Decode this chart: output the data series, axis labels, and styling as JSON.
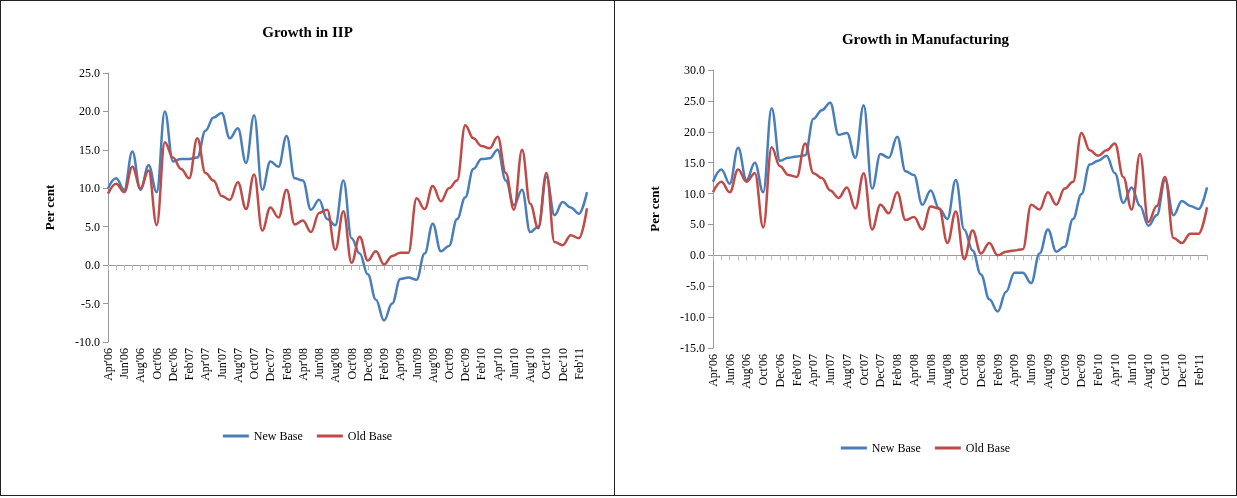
{
  "chart_data": [
    {
      "type": "line",
      "title": "Growth in IIP",
      "ylabel": "Per cent",
      "legend": "bottom",
      "categories": [
        "Apr'06",
        null,
        "Jun'06",
        null,
        "Aug'06",
        null,
        "Oct'06",
        null,
        "Dec'06",
        null,
        "Feb'07",
        null,
        "Apr'07",
        null,
        "Jun'07",
        null,
        "Aug'07",
        null,
        "Oct'07",
        null,
        "Dec'07",
        null,
        "Feb'08",
        null,
        "Apr'08",
        null,
        "Jun'08",
        null,
        "Aug'08",
        null,
        "Oct'08",
        null,
        "Dec'08",
        null,
        "Feb'09",
        null,
        "Apr'09",
        null,
        "Jun'09",
        null,
        "Aug'09",
        null,
        "Oct'09",
        null,
        "Dec'09",
        null,
        "Feb'10",
        null,
        "Apr'10",
        null,
        "Jun'10",
        null,
        "Aug'10",
        null,
        "Oct'10",
        null,
        "Dec'10",
        null,
        "Feb'11",
        null
      ],
      "ylim": [
        -10,
        25
      ],
      "yticks": [
        {
          "value": -10,
          "label": "-10.0"
        },
        {
          "value": -5,
          "label": "-5.0"
        },
        {
          "value": 0,
          "label": "0.0"
        },
        {
          "value": 5,
          "label": "5.0"
        },
        {
          "value": 10,
          "label": "10.0"
        },
        {
          "value": 15,
          "label": "15.0"
        },
        {
          "value": 20,
          "label": "20.0"
        },
        {
          "value": 25,
          "label": "25.0"
        }
      ],
      "series": [
        {
          "name": "New Base",
          "color": "#4a7ebb",
          "values": [
            10.0,
            11.3,
            9.8,
            14.8,
            9.8,
            13.0,
            9.5,
            20.0,
            13.5,
            13.8,
            13.8,
            14.0,
            17.5,
            19.2,
            19.8,
            16.5,
            17.8,
            13.3,
            19.5,
            9.8,
            13.5,
            12.8,
            16.8,
            11.3,
            11.0,
            7.2,
            8.5,
            6.0,
            5.2,
            11.0,
            3.5,
            1.5,
            -1.2,
            -4.5,
            -7.2,
            -5.0,
            -1.8,
            -1.6,
            -1.9,
            1.5,
            5.4,
            1.8,
            2.5,
            6.0,
            8.8,
            12.5,
            13.8,
            13.9,
            15.0,
            11.0,
            7.8,
            9.8,
            4.3,
            5.0,
            11.5,
            6.5,
            8.2,
            7.5,
            6.7,
            9.5
          ]
        },
        {
          "name": "Old Base",
          "color": "#be4b48",
          "values": [
            9.3,
            10.6,
            9.5,
            12.8,
            10.0,
            12.3,
            5.2,
            16.0,
            14.0,
            12.5,
            11.3,
            16.5,
            12.0,
            11.0,
            9.0,
            8.5,
            10.8,
            7.3,
            11.8,
            4.5,
            7.5,
            6.2,
            9.8,
            5.3,
            5.8,
            4.3,
            6.8,
            7.2,
            2.0,
            7.0,
            0.3,
            3.7,
            0.6,
            1.8,
            0.1,
            1.2,
            1.6,
            1.6,
            8.7,
            7.3,
            10.3,
            8.3,
            10.0,
            11.0,
            18.2,
            16.5,
            15.5,
            15.2,
            16.7,
            12.0,
            7.2,
            15.0,
            8.0,
            4.8,
            12.0,
            3.0,
            2.6,
            3.9,
            3.5,
            7.4
          ]
        }
      ]
    },
    {
      "type": "line",
      "title": "Growth in Manufacturing",
      "ylabel": "Per cent",
      "legend": "bottom",
      "categories": [
        "Apr'06",
        null,
        "Jun'06",
        null,
        "Aug'06",
        null,
        "Oct'06",
        null,
        "Dec'06",
        null,
        "Feb'07",
        null,
        "Apr'07",
        null,
        "Jun'07",
        null,
        "Aug'07",
        null,
        "Oct'07",
        null,
        "Dec'07",
        null,
        "Feb'08",
        null,
        "Apr'08",
        null,
        "Jun'08",
        null,
        "Aug'08",
        null,
        "Oct'08",
        null,
        "Dec'08",
        null,
        "Feb'09",
        null,
        "Apr'09",
        null,
        "Jun'09",
        null,
        "Aug'09",
        null,
        "Oct'09",
        null,
        "Dec'09",
        null,
        "Feb'10",
        null,
        "Apr'10",
        null,
        "Jun'10",
        null,
        "Aug'10",
        null,
        "Oct'10",
        null,
        "Dec'10",
        null,
        "Feb'11",
        null
      ],
      "ylim": [
        -15,
        30
      ],
      "yticks": [
        {
          "value": -15,
          "label": "-15.0"
        },
        {
          "value": -10,
          "label": "-10.0"
        },
        {
          "value": -5,
          "label": "-5.0"
        },
        {
          "value": 0,
          "label": "0.0"
        },
        {
          "value": 5,
          "label": "5.0"
        },
        {
          "value": 10,
          "label": "10.0"
        },
        {
          "value": 15,
          "label": "15.0"
        },
        {
          "value": 20,
          "label": "20.0"
        },
        {
          "value": 25,
          "label": "25.0"
        },
        {
          "value": 30,
          "label": "30.0"
        }
      ],
      "series": [
        {
          "name": "New Base",
          "color": "#4a7ebb",
          "values": [
            11.9,
            13.9,
            11.6,
            17.4,
            12.2,
            15.0,
            10.2,
            23.8,
            15.3,
            15.8,
            16.0,
            16.2,
            22.1,
            23.5,
            24.7,
            19.5,
            19.8,
            15.8,
            24.3,
            10.8,
            16.4,
            15.8,
            19.2,
            13.6,
            13.0,
            8.2,
            10.5,
            7.6,
            5.9,
            12.2,
            4.2,
            0.8,
            -3.1,
            -7.1,
            -9.1,
            -5.9,
            -2.8,
            -2.8,
            -4.5,
            0.3,
            4.2,
            0.6,
            1.4,
            5.9,
            9.9,
            14.7,
            15.3,
            16.1,
            13.3,
            8.5,
            11.0,
            8.0,
            4.8,
            6.5,
            12.2,
            6.5,
            8.8,
            8.0,
            7.5,
            11.0
          ]
        },
        {
          "name": "Old Base",
          "color": "#be4b48",
          "values": [
            10.2,
            11.9,
            10.2,
            13.9,
            11.9,
            13.3,
            4.5,
            17.5,
            14.4,
            13.0,
            12.7,
            18.1,
            13.3,
            12.5,
            10.5,
            9.3,
            11.0,
            7.6,
            13.3,
            4.2,
            8.2,
            6.8,
            10.2,
            5.7,
            6.2,
            4.2,
            7.9,
            7.6,
            2.0,
            7.1,
            -0.6,
            4.0,
            0.3,
            2.0,
            0.0,
            0.6,
            0.8,
            1.0,
            8.2,
            7.4,
            10.2,
            8.2,
            10.8,
            11.9,
            19.8,
            17.0,
            16.1,
            17.0,
            18.1,
            12.7,
            7.4,
            16.4,
            5.4,
            8.0,
            12.7,
            2.8,
            2.0,
            3.5,
            3.5,
            7.8
          ]
        }
      ]
    }
  ]
}
